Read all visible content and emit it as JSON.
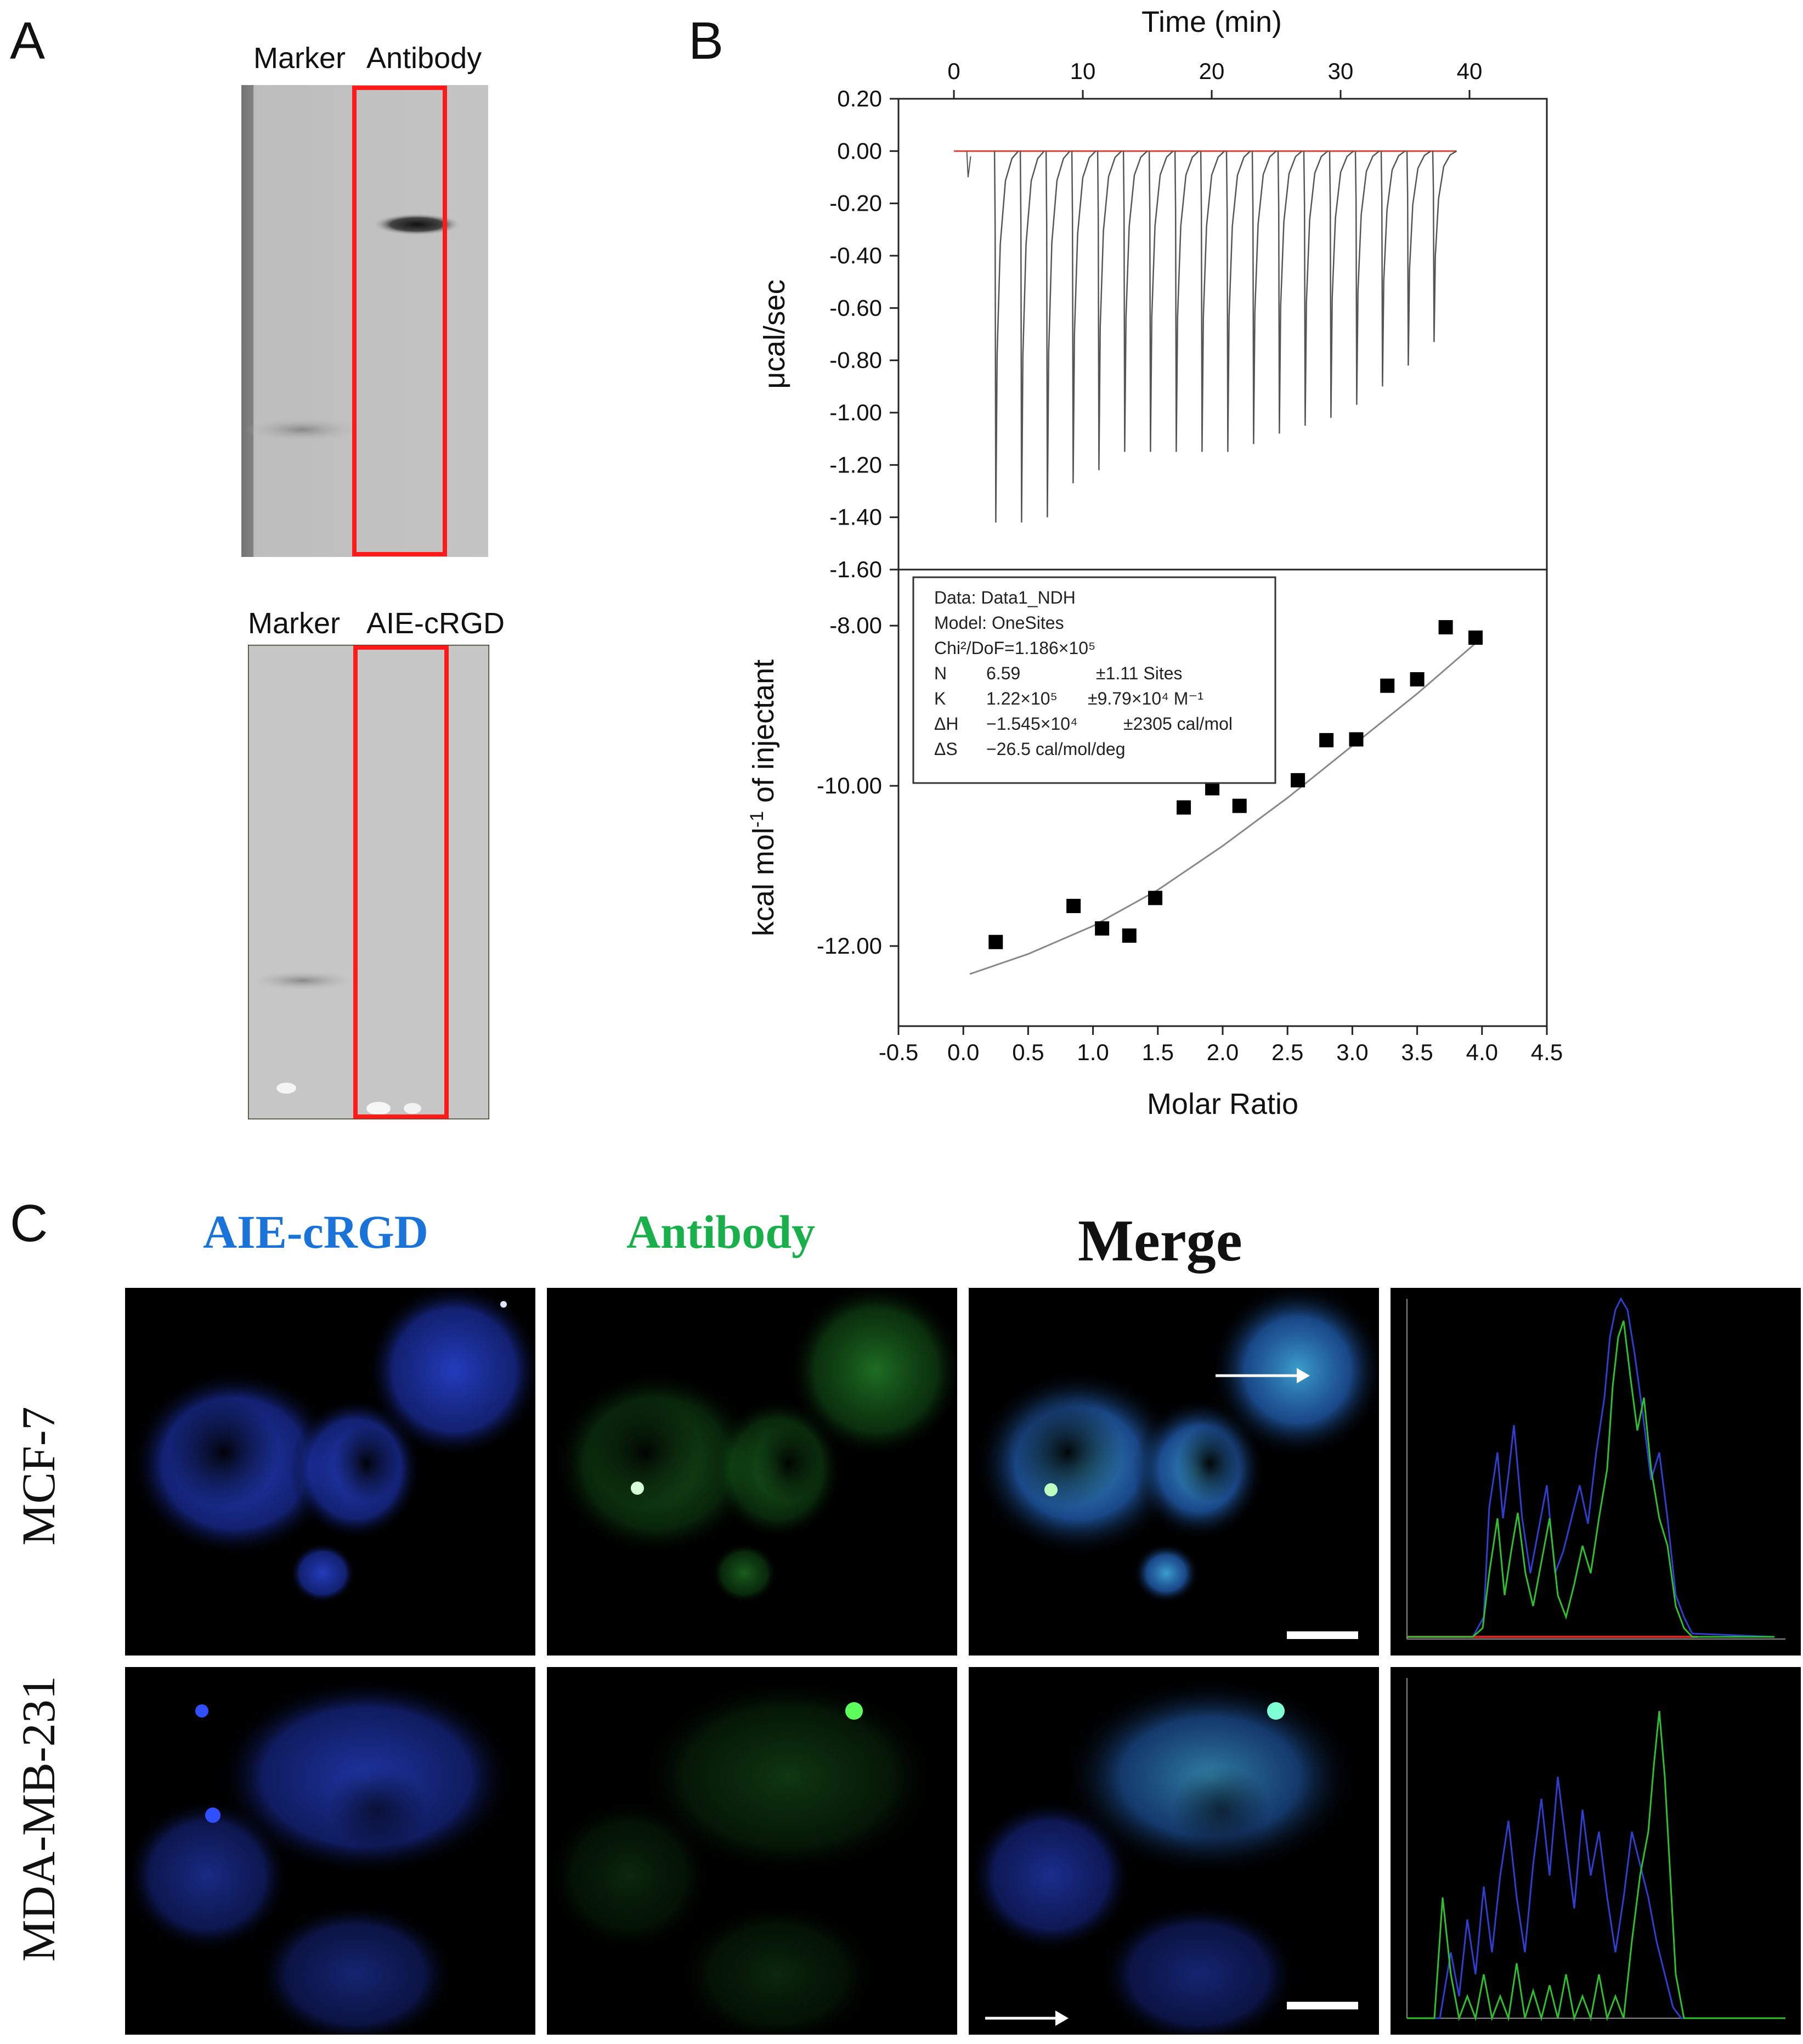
{
  "figure": {
    "panel_a": {
      "letter": "A",
      "gel_top": {
        "lane_left": "Marker",
        "lane_right": "Antibody"
      },
      "gel_bottom": {
        "lane_left": "Marker",
        "lane_right": "AIE-cRGD"
      }
    },
    "panel_b": {
      "letter": "B"
    },
    "panel_c": {
      "letter": "C",
      "col_blue": "AIE-cRGD",
      "col_green": "Antibody",
      "col_merge": "Merge",
      "row_1": "MCF-7",
      "row_2": "MDA-MB-231"
    }
  },
  "colors": {
    "blue_label": "#1a73d9",
    "green_label": "#19b04b",
    "highlight_box": "#ff1a1a",
    "fit_line": "#888888",
    "baseline": "#e04a3a"
  },
  "chart_data": [
    {
      "type": "line",
      "xlabel": "Time (min)",
      "ylabel": "μcal/sec",
      "xlim": [
        -4.3,
        46
      ],
      "ylim": [
        -1.6,
        0.2
      ],
      "xticks": [
        "0",
        "10",
        "20",
        "30",
        "40"
      ],
      "xtick_values": [
        0,
        10,
        20,
        30,
        40
      ],
      "yticks": [
        "0.20",
        "0.00",
        "-0.20",
        "-0.40",
        "-0.60",
        "-0.80",
        "-1.00",
        "-1.20",
        "-1.40",
        "-1.60"
      ],
      "ytick_values": [
        0.2,
        0.0,
        -0.2,
        -0.4,
        -0.6,
        -0.8,
        -1.0,
        -1.2,
        -1.4,
        -1.6
      ],
      "injection_times": [
        3.2,
        5.2,
        7.2,
        9.2,
        11.2,
        13.2,
        15.2,
        17.2,
        19.2,
        21.2,
        23.2,
        25.2,
        27.2,
        29.2,
        31.2,
        33.2,
        35.2,
        37.2
      ],
      "injection_peaks": [
        -1.42,
        -1.42,
        -1.4,
        -1.27,
        -1.22,
        -1.15,
        -1.15,
        -1.15,
        -1.15,
        -1.15,
        -1.12,
        -1.08,
        -1.05,
        -1.02,
        -0.97,
        -0.9,
        -0.82,
        -0.73
      ],
      "baseline": 0.0,
      "baseline_range": [
        0,
        39
      ]
    },
    {
      "type": "scatter",
      "xlabel": "Molar Ratio",
      "ylabel": "kcal mol",
      "ylabel_sup": "-1",
      "ylabel_tail": " of injectant",
      "xlim": [
        -0.5,
        4.5
      ],
      "ylim": [
        -13.0,
        -7.3
      ],
      "xticks": [
        "-0.5",
        "0.0",
        "0.5",
        "1.0",
        "1.5",
        "2.0",
        "2.5",
        "3.0",
        "3.5",
        "4.0",
        "4.5"
      ],
      "xtick_values": [
        -0.5,
        0.0,
        0.5,
        1.0,
        1.5,
        2.0,
        2.5,
        3.0,
        3.5,
        4.0,
        4.5
      ],
      "yticks": [
        "-8.00",
        "-10.00",
        "-12.00"
      ],
      "ytick_values": [
        -8.0,
        -10.0,
        -12.0
      ],
      "points": [
        [
          0.25,
          -11.95
        ],
        [
          0.85,
          -11.5
        ],
        [
          1.07,
          -11.78
        ],
        [
          1.28,
          -11.87
        ],
        [
          1.48,
          -11.4
        ],
        [
          1.7,
          -10.27
        ],
        [
          1.92,
          -10.03
        ],
        [
          2.13,
          -10.25
        ],
        [
          2.35,
          -9.75
        ],
        [
          2.58,
          -9.93
        ],
        [
          2.8,
          -9.43
        ],
        [
          3.03,
          -9.42
        ],
        [
          3.27,
          -8.75
        ],
        [
          3.5,
          -8.67
        ],
        [
          3.72,
          -8.02
        ],
        [
          3.95,
          -8.15
        ]
      ],
      "fit": [
        [
          0.05,
          -12.35
        ],
        [
          0.5,
          -12.1
        ],
        [
          1.0,
          -11.75
        ],
        [
          1.5,
          -11.3
        ],
        [
          2.0,
          -10.75
        ],
        [
          2.5,
          -10.15
        ],
        [
          3.0,
          -9.5
        ],
        [
          3.5,
          -8.85
        ],
        [
          4.0,
          -8.15
        ]
      ],
      "annotation": {
        "line1": "Data: Data1_NDH",
        "line2": "Model: OneSites",
        "line3": "Chi²/DoF=1.186×10⁵",
        "line4_name": "N",
        "line4_value": "6.59",
        "line4_err": "±1.11 Sites",
        "line5_name": "K",
        "line5_value": "1.22×10⁵",
        "line5_err": "±9.79×10⁴ M⁻¹",
        "line6_name": "ΔH",
        "line6_value": "−1.545×10⁴",
        "line6_err": "±2305 cal/mol",
        "line7_name": "ΔS",
        "line7_value": "−26.5 cal/mol/deg"
      }
    }
  ]
}
